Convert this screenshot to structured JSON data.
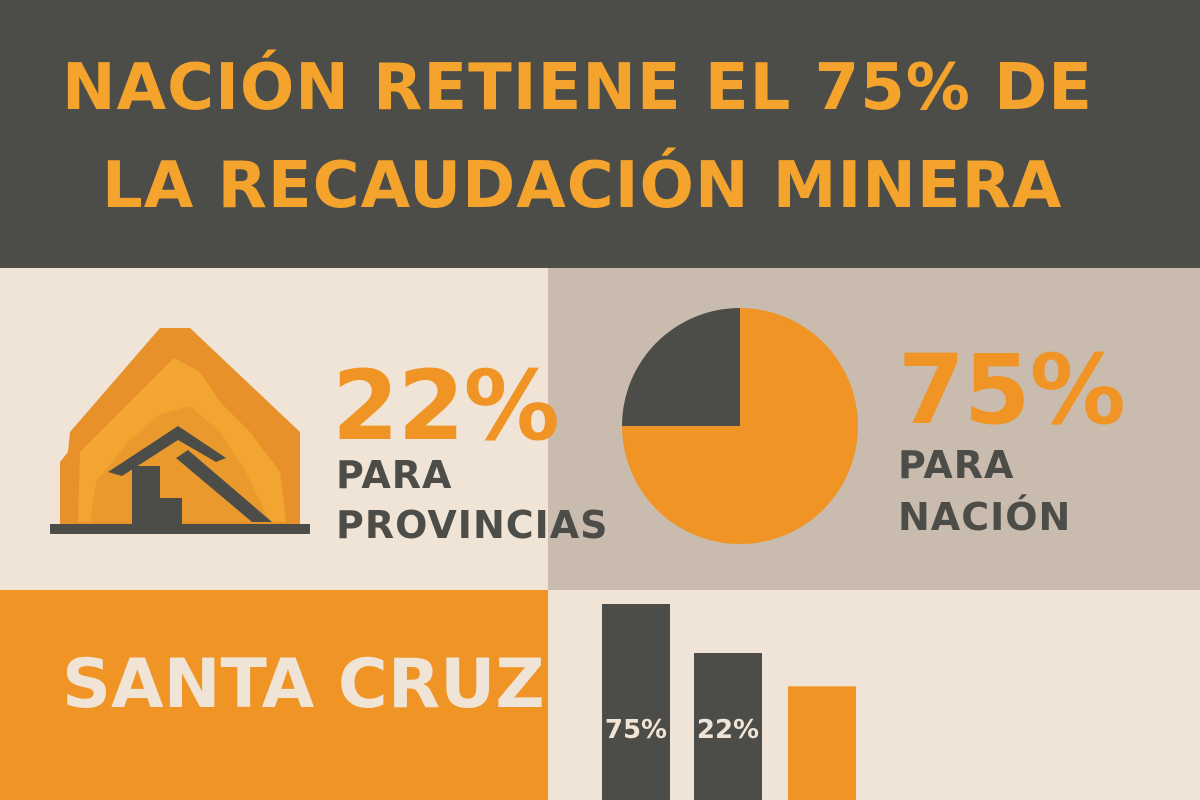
{
  "title": {
    "line1": "NACIÓN RETIENE EL 75% DE",
    "line2": "LA RECAUDACIÓN MINERA"
  },
  "provincias": {
    "percent": "22%",
    "label_line1": "PARA",
    "label_line2": "PROVINCIAS",
    "icon": "mine-entrance-icon"
  },
  "nacion": {
    "percent": "75%",
    "label_line1": "PARA",
    "label_line2": "NACIÓN"
  },
  "region": "SANTA CRUZ",
  "colors": {
    "dark": "#4c4c48",
    "orange": "#ef9425",
    "title_orange": "#f4a32c",
    "cream": "#efe4d6",
    "taupe": "#c9bcae"
  },
  "chart_data": [
    {
      "type": "pie",
      "slices": [
        {
          "label": "Nación",
          "value": 75,
          "color": "#ef9425"
        },
        {
          "label": "",
          "value": 25,
          "color": "#4c4c48"
        }
      ]
    },
    {
      "type": "bar",
      "categories": [
        "",
        "",
        ""
      ],
      "values": [
        100,
        75,
        58
      ],
      "data_labels": [
        "75%",
        "22%",
        ""
      ],
      "colors": [
        "#4c4c48",
        "#4c4c48",
        "#ef9425"
      ],
      "ylim": [
        0,
        100
      ],
      "grid": false,
      "legend": "none"
    }
  ]
}
